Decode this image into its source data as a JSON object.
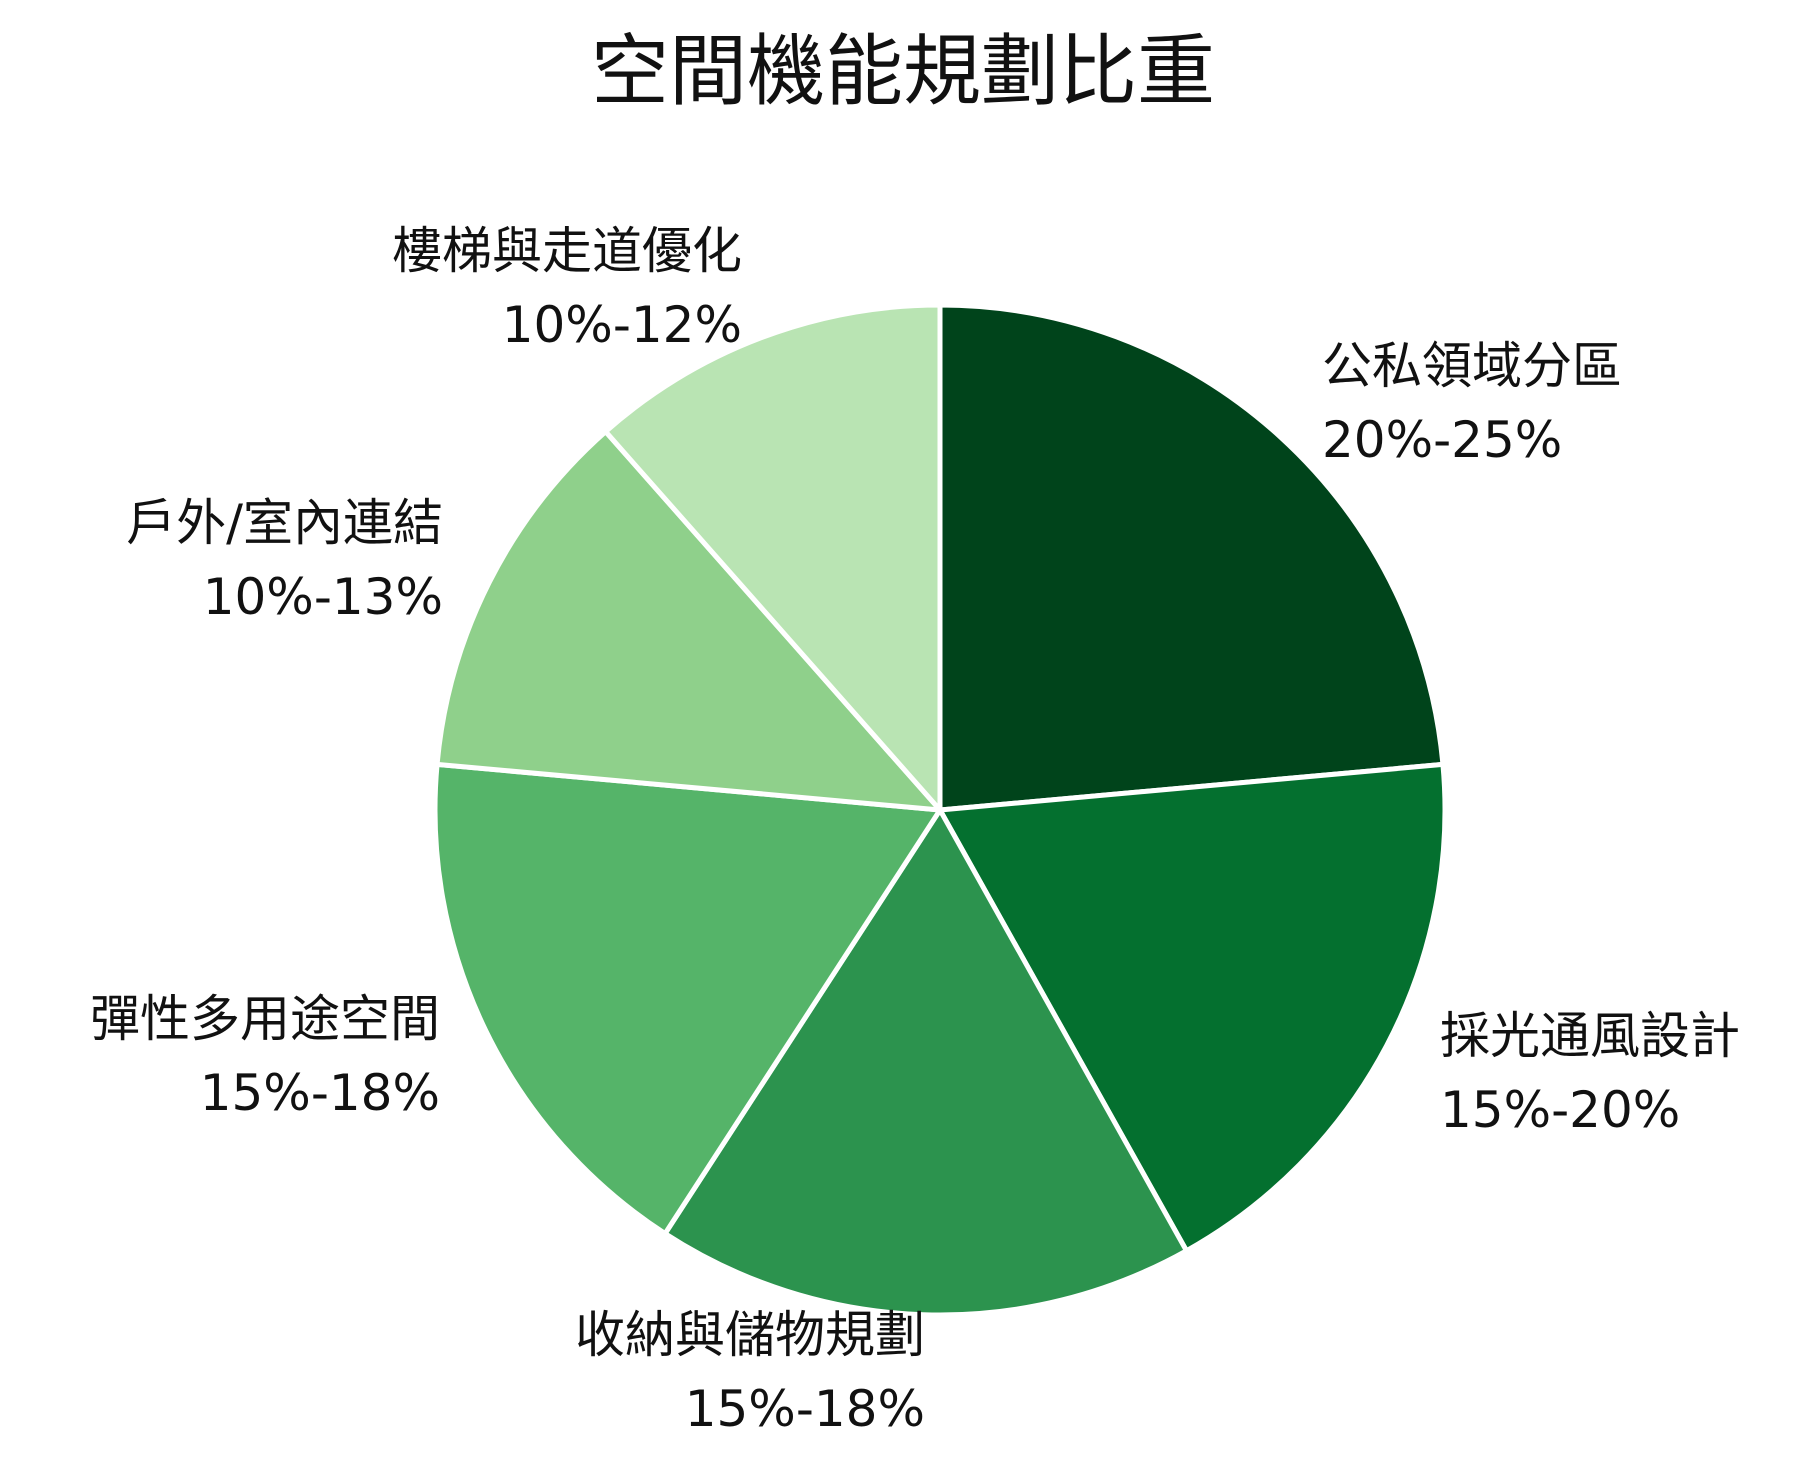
{
  "chart_data": {
    "type": "pie",
    "title": "空間機能規劃比重",
    "slices": [
      {
        "name": "公私領域分區",
        "range": "20%-25%",
        "value": 22.5,
        "color": "#00441b"
      },
      {
        "name": "採光通風設計",
        "range": "15%-20%",
        "value": 17.5,
        "color": "#04702f"
      },
      {
        "name": "收納與儲物規劃",
        "range": "15%-18%",
        "value": 16.5,
        "color": "#2c934e"
      },
      {
        "name": "彈性多用途空間",
        "range": "15%-18%",
        "value": 16.5,
        "color": "#55b469"
      },
      {
        "name": "戶外/室內連結",
        "range": "10%-13%",
        "value": 11.5,
        "color": "#8fd08b"
      },
      {
        "name": "樓梯與走道優化",
        "range": "10%-12%",
        "value": 11.0,
        "color": "#b9e4b3"
      }
    ]
  }
}
